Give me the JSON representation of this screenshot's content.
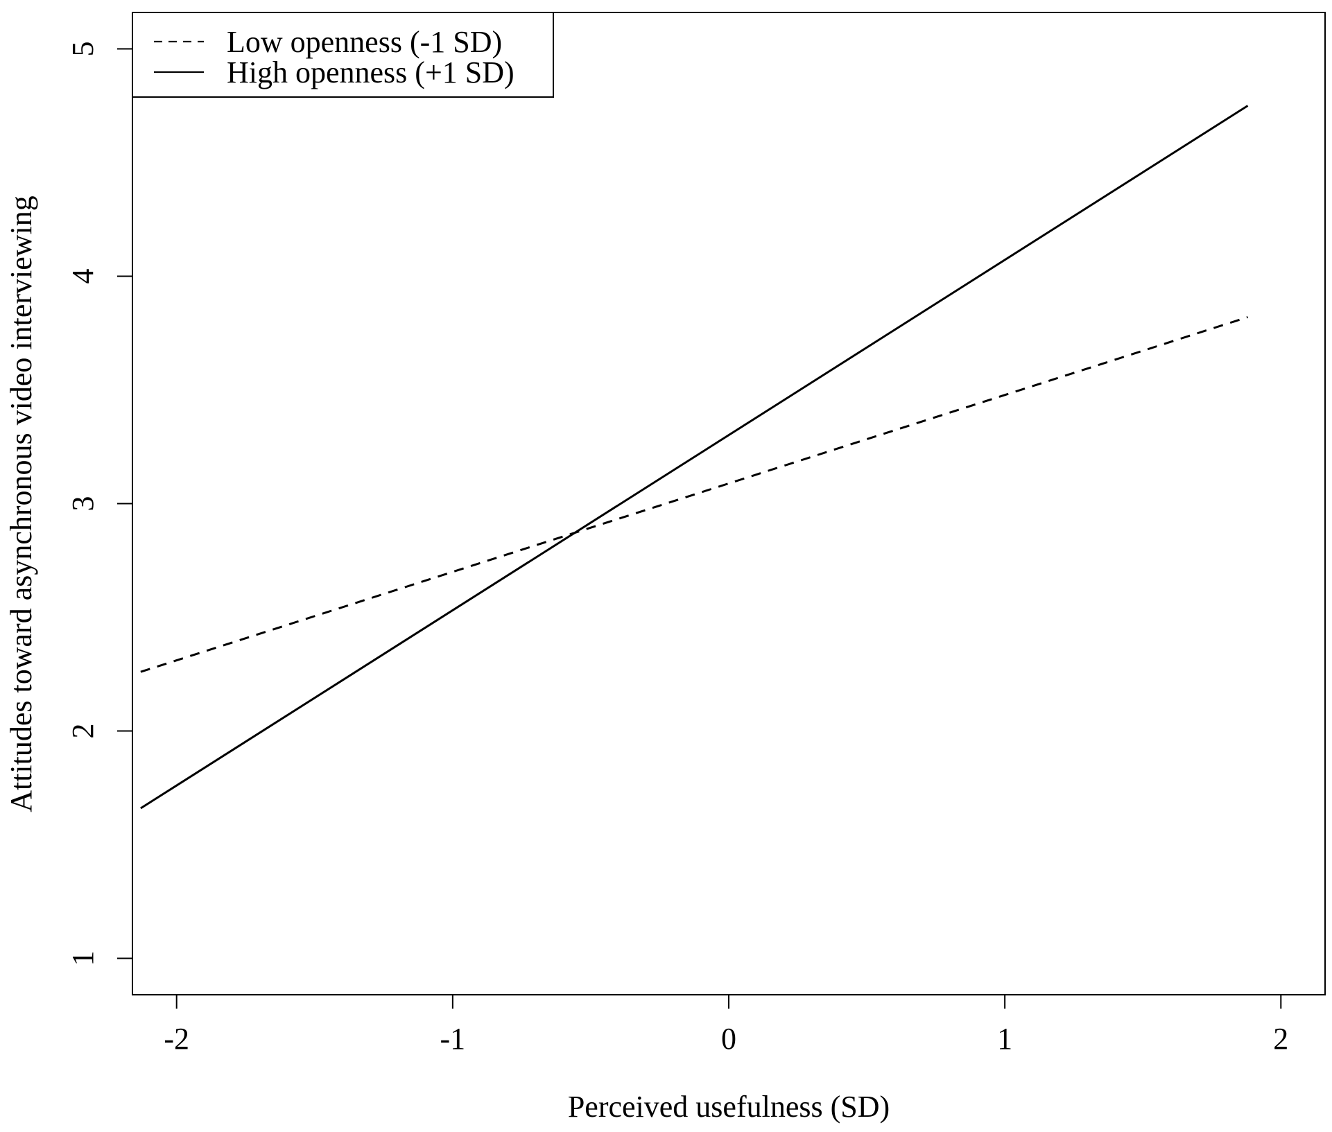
{
  "chart_data": {
    "type": "line",
    "title": "",
    "xlabel": "Perceived usefulness (SD)",
    "ylabel": "Attitudes toward asynchronous video interviewing",
    "xlim": [
      -2.16,
      2.16
    ],
    "ylim": [
      0.84,
      5.16
    ],
    "x_ticks": [
      -2,
      -1,
      0,
      1,
      2
    ],
    "y_ticks": [
      1,
      2,
      3,
      4,
      5
    ],
    "x_tick_labels": [
      "-2",
      "-1",
      "0",
      "1",
      "2"
    ],
    "y_tick_labels": [
      "1",
      "2",
      "3",
      "4",
      "5"
    ],
    "grid": false,
    "legend_position": "top-left",
    "series": [
      {
        "name": "Low openness (-1 SD)",
        "line_style": "dashed",
        "color": "#000000",
        "x": [
          -2.13,
          1.88
        ],
        "y": [
          2.26,
          3.82
        ]
      },
      {
        "name": "High openness (+1 SD)",
        "line_style": "solid",
        "color": "#000000",
        "x": [
          -2.13,
          1.88
        ],
        "y": [
          1.66,
          4.75
        ]
      }
    ]
  }
}
